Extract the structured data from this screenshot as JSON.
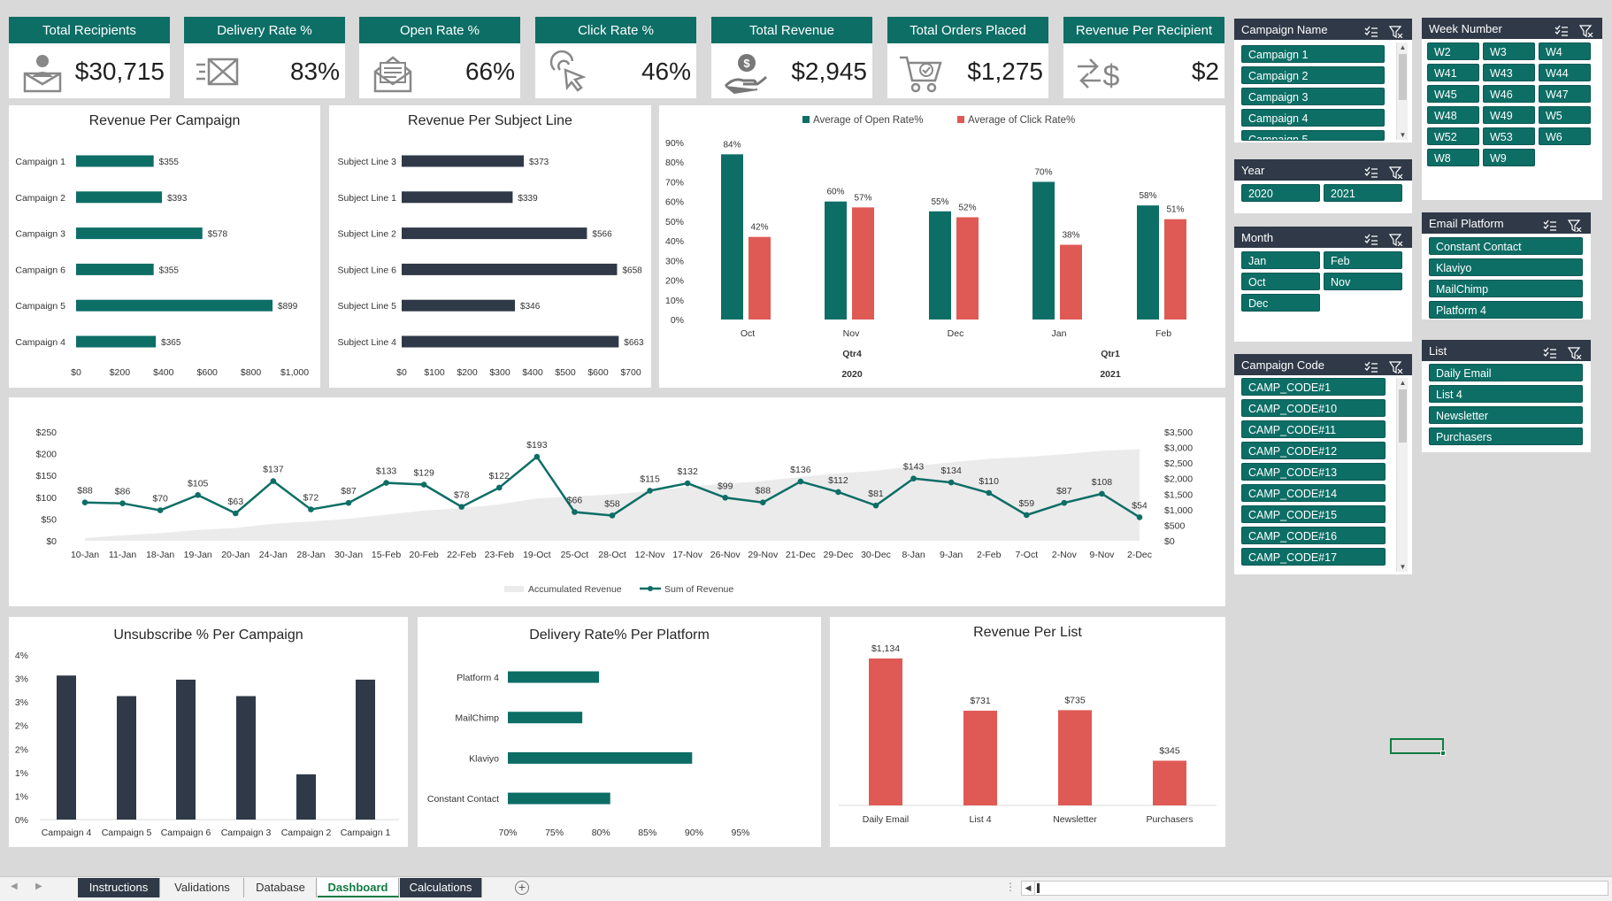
{
  "kpis": [
    {
      "title": "Total Recipients",
      "value": "$30,715",
      "icon": "envelope-person-icon"
    },
    {
      "title": "Delivery Rate %",
      "value": "83%",
      "icon": "fast-mail-icon"
    },
    {
      "title": "Open Rate %",
      "value": "66%",
      "icon": "open-envelope-icon"
    },
    {
      "title": "Click Rate %",
      "value": "46%",
      "icon": "cursor-click-icon"
    },
    {
      "title": "Total Revenue",
      "value": "$2,945",
      "icon": "money-hand-icon"
    },
    {
      "title": "Total Orders Placed",
      "value": "$1,275",
      "icon": "shopping-cart-icon"
    },
    {
      "title": "Revenue Per Recipient",
      "value": "$2",
      "icon": "exchange-dollar-icon"
    }
  ],
  "charts": {
    "revenue_per_campaign": {
      "type": "bar",
      "title": "Revenue Per Campaign",
      "categories": [
        "Campaign 1",
        "Campaign 2",
        "Campaign 3",
        "Campaign 6",
        "Campaign 5",
        "Campaign 4"
      ],
      "values": [
        355,
        393,
        578,
        355,
        899,
        365
      ],
      "labels": [
        "$355",
        "$393",
        "$578",
        "$355",
        "$899",
        "$365"
      ],
      "xlim": [
        0,
        1000
      ],
      "ticks": [
        "$0",
        "$200",
        "$400",
        "$600",
        "$800",
        "$1,000"
      ],
      "color": "#0d6e66"
    },
    "revenue_per_subject": {
      "type": "bar",
      "title": "Revenue Per Subject Line",
      "categories": [
        "Subject Line 3",
        "Subject Line 1",
        "Subject Line 2",
        "Subject Line 6",
        "Subject Line 5",
        "Subject Line 4"
      ],
      "values": [
        373,
        339,
        566,
        658,
        346,
        663
      ],
      "labels": [
        "$373",
        "$339",
        "$566",
        "$658",
        "$346",
        "$663"
      ],
      "xlim": [
        0,
        700
      ],
      "ticks": [
        "$0",
        "$100",
        "$200",
        "$300",
        "$400",
        "$500",
        "$600",
        "$700"
      ],
      "color": "#2f3947"
    },
    "open_click_rates": {
      "type": "bar",
      "legend": [
        "Average of Open Rate%",
        "Average of Click Rate%"
      ],
      "colors": [
        "#0d6e66",
        "#e05a55"
      ],
      "categories": [
        "Oct",
        "Nov",
        "Dec",
        "Jan",
        "Feb"
      ],
      "series": [
        {
          "name": "Average of Open Rate%",
          "values": [
            84,
            60,
            55,
            70,
            58
          ],
          "labels": [
            "84%",
            "60%",
            "55%",
            "70%",
            "58%"
          ]
        },
        {
          "name": "Average of Click Rate%",
          "values": [
            42,
            57,
            52,
            38,
            51
          ],
          "labels": [
            "42%",
            "57%",
            "52%",
            "38%",
            "51%"
          ]
        }
      ],
      "ylim": [
        0,
        90
      ],
      "ticks": [
        "0%",
        "10%",
        "20%",
        "30%",
        "40%",
        "50%",
        "60%",
        "70%",
        "80%",
        "90%"
      ],
      "quarters": [
        "Qtr4",
        "Qtr1"
      ],
      "years": [
        "2020",
        "2021"
      ]
    },
    "revenue_trend": {
      "type": "line",
      "x": [
        "10-Jan",
        "11-Jan",
        "18-Jan",
        "19-Jan",
        "20-Jan",
        "24-Jan",
        "28-Jan",
        "30-Jan",
        "15-Feb",
        "20-Feb",
        "22-Feb",
        "23-Feb",
        "19-Oct",
        "25-Oct",
        "28-Oct",
        "12-Nov",
        "17-Nov",
        "26-Nov",
        "29-Nov",
        "21-Dec",
        "29-Dec",
        "30-Dec",
        "8-Jan",
        "9-Jan",
        "2-Feb",
        "7-Oct",
        "2-Nov",
        "9-Nov",
        "2-Dec"
      ],
      "values": [
        88,
        86,
        70,
        105,
        63,
        137,
        72,
        87,
        133,
        129,
        78,
        122,
        193,
        66,
        58,
        115,
        132,
        99,
        88,
        136,
        112,
        81,
        143,
        134,
        110,
        59,
        87,
        108,
        54
      ],
      "labels": [
        "$88",
        "$86",
        "$70",
        "$105",
        "$63",
        "$137",
        "$72",
        "$87",
        "$133",
        "$129",
        "$78",
        "$122",
        "$193",
        "$66",
        "$58",
        "$115",
        "$132",
        "$99",
        "$88",
        "$136",
        "$112",
        "$81",
        "$143",
        "$134",
        "$110",
        "$59",
        "$87",
        "$108",
        "$54"
      ],
      "ylim": [
        0,
        250
      ],
      "left_ticks": [
        "$0",
        "$50",
        "$100",
        "$150",
        "$200",
        "$250"
      ],
      "y2lim": [
        0,
        3500
      ],
      "right_ticks": [
        "$0",
        "$500",
        "$1,000",
        "$1,500",
        "$2,000",
        "$2,500",
        "$3,000",
        "$3,500"
      ],
      "legend": [
        "Accumulated Revenue",
        "Sum of Revenue"
      ],
      "colors": [
        "#0d6e66",
        "#ebebeb"
      ]
    },
    "unsubscribe": {
      "type": "bar",
      "title": "Unsubscribe % Per Campaign",
      "categories": [
        "Campaign 4",
        "Campaign 5",
        "Campaign 6",
        "Campaign 3",
        "Campaign 2",
        "Campaign 1"
      ],
      "values": [
        3.5,
        3.0,
        3.4,
        3.0,
        1.1,
        3.4
      ],
      "ylim": [
        0,
        4
      ],
      "ticks": [
        "0%",
        "1%",
        "1%",
        "2%",
        "2%",
        "3%",
        "3%",
        "4%"
      ],
      "color": "#2f3947"
    },
    "delivery_platform": {
      "type": "bar",
      "title": "Delivery Rate% Per Platform",
      "categories": [
        "Platform 4",
        "MailChimp",
        "Klaviyo",
        "Constant Contact"
      ],
      "values": [
        79.8,
        78.0,
        89.8,
        81.0
      ],
      "xlim": [
        70,
        95
      ],
      "ticks": [
        "70%",
        "75%",
        "80%",
        "85%",
        "90%",
        "95%"
      ],
      "color": "#0d6e66"
    },
    "revenue_per_list": {
      "type": "bar",
      "title": "Revenue Per List",
      "categories": [
        "Daily Email",
        "List 4",
        "Newsletter",
        "Purchasers"
      ],
      "values": [
        1134,
        731,
        735,
        345
      ],
      "labels": [
        "$1,134",
        "$731",
        "$735",
        "$345"
      ],
      "ylim": [
        0,
        1250
      ],
      "color": "#e05a55"
    }
  },
  "slicers": {
    "campaign_name": {
      "title": "Campaign Name",
      "items": [
        "Campaign 1",
        "Campaign 2",
        "Campaign 3",
        "Campaign 4",
        "Campaign 5"
      ]
    },
    "week_number": {
      "title": "Week Number",
      "items": [
        "W2",
        "W3",
        "W4",
        "W41",
        "W43",
        "W44",
        "W45",
        "W46",
        "W47",
        "W48",
        "W49",
        "W5",
        "W52",
        "W53",
        "W6",
        "W8",
        "W9"
      ]
    },
    "year": {
      "title": "Year",
      "items": [
        "2020",
        "2021"
      ]
    },
    "month": {
      "title": "Month",
      "items": [
        "Jan",
        "Feb",
        "Oct",
        "Nov",
        "Dec"
      ]
    },
    "email_platform": {
      "title": "Email Platform",
      "items": [
        "Constant Contact",
        "Klaviyo",
        "MailChimp",
        "Platform 4"
      ]
    },
    "campaign_code": {
      "title": "Campaign Code",
      "items": [
        "CAMP_CODE#1",
        "CAMP_CODE#10",
        "CAMP_CODE#11",
        "CAMP_CODE#12",
        "CAMP_CODE#13",
        "CAMP_CODE#14",
        "CAMP_CODE#15",
        "CAMP_CODE#16",
        "CAMP_CODE#17"
      ]
    },
    "list": {
      "title": "List",
      "items": [
        "Daily Email",
        "List 4",
        "Newsletter",
        "Purchasers"
      ]
    }
  },
  "sheet_tabs": [
    "Instructions",
    "Validations",
    "Database",
    "Dashboard",
    "Calculations"
  ],
  "active_tab": "Dashboard"
}
